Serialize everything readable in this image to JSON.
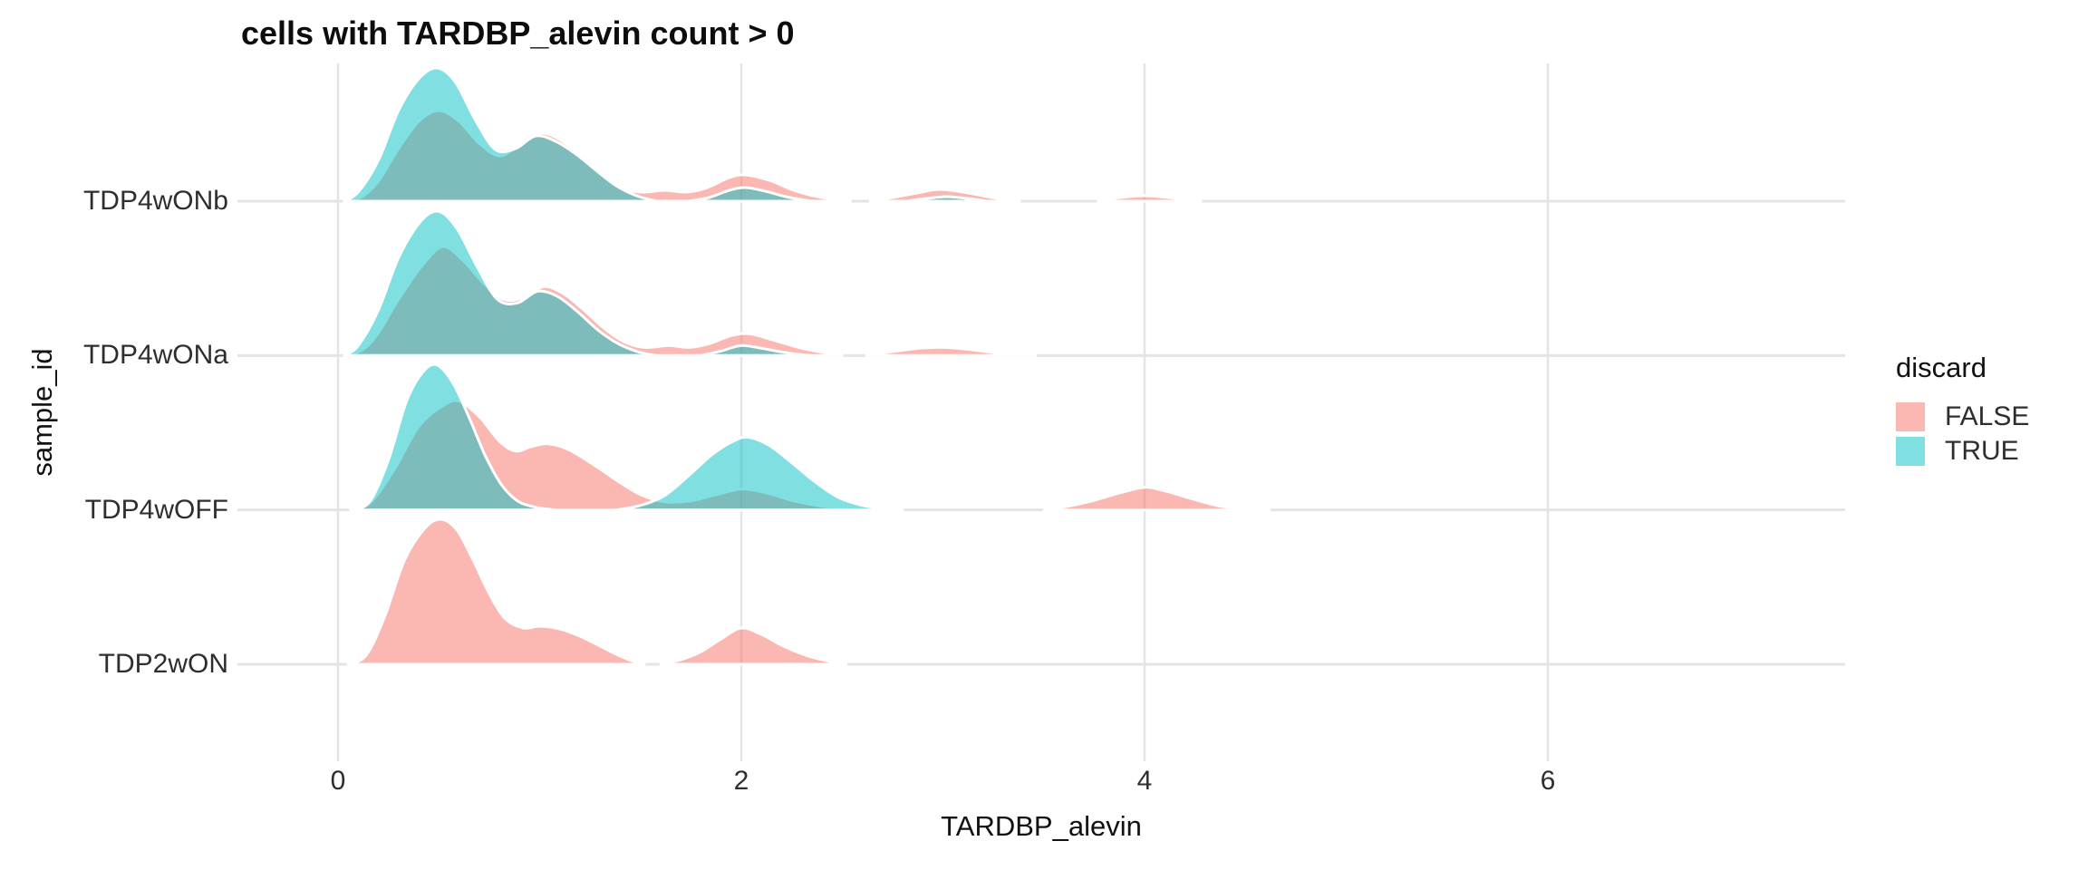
{
  "chart_data": {
    "type": "ridgeline",
    "title": "cells with TARDBP_alevin count > 0",
    "xlabel": "TARDBP_alevin",
    "ylabel": "sample_id",
    "x_ticks": [
      0,
      2,
      4,
      6
    ],
    "x_axis_range": [
      -0.5,
      7.5
    ],
    "grid": "major-only, light gray on white (theme_minimal style)",
    "legend": {
      "title": "discard",
      "position": "right",
      "entries": [
        {
          "label": "FALSE",
          "color": "#F8766D",
          "fill_opacity": 0.52
        },
        {
          "label": "TRUE",
          "color": "#00BFC4",
          "fill_opacity": 0.5
        }
      ]
    },
    "height_unit_note": "segment points are [x_value, density_height_px] where 170px = one full row band",
    "rows": [
      {
        "sample_id": "TDP4wONb",
        "densities": [
          {
            "discard": "FALSE",
            "segments": [
              [
                [
                  0.03,
                  0
                ],
                [
                  0.12,
                  5
                ],
                [
                  0.2,
                  22
                ],
                [
                  0.3,
                  58
                ],
                [
                  0.4,
                  88
                ],
                [
                  0.5,
                  100
                ],
                [
                  0.6,
                  88
                ],
                [
                  0.7,
                  64
                ],
                [
                  0.8,
                  50
                ],
                [
                  0.9,
                  62
                ],
                [
                  1.0,
                  75
                ],
                [
                  1.1,
                  68
                ],
                [
                  1.2,
                  50
                ],
                [
                  1.3,
                  30
                ],
                [
                  1.4,
                  15
                ],
                [
                  1.5,
                  10
                ],
                [
                  1.62,
                  12
                ],
                [
                  1.72,
                  10
                ],
                [
                  1.82,
                  14
                ],
                [
                  1.94,
                  26
                ],
                [
                  2.02,
                  29
                ],
                [
                  2.14,
                  23
                ],
                [
                  2.26,
                  12
                ],
                [
                  2.4,
                  4
                ],
                [
                  2.54,
                  0
                ]
              ],
              [
                [
                  2.64,
                  0
                ],
                [
                  2.75,
                  4
                ],
                [
                  2.87,
                  9
                ],
                [
                  2.98,
                  13
                ],
                [
                  3.1,
                  10
                ],
                [
                  3.22,
                  5
                ],
                [
                  3.32,
                  1
                ],
                [
                  3.38,
                  0
                ]
              ],
              [
                [
                  3.77,
                  0
                ],
                [
                  3.88,
                  4
                ],
                [
                  4.0,
                  6
                ],
                [
                  4.12,
                  4
                ],
                [
                  4.22,
                  1
                ],
                [
                  4.28,
                  0
                ]
              ]
            ]
          },
          {
            "discard": "TRUE",
            "segments": [
              [
                [
                  0.03,
                  0
                ],
                [
                  0.1,
                  10
                ],
                [
                  0.2,
                  45
                ],
                [
                  0.3,
                  100
                ],
                [
                  0.4,
                  135
                ],
                [
                  0.49,
                  147
                ],
                [
                  0.58,
                  132
                ],
                [
                  0.68,
                  90
                ],
                [
                  0.78,
                  57
                ],
                [
                  0.88,
                  58
                ],
                [
                  0.98,
                  72
                ],
                [
                  1.08,
                  66
                ],
                [
                  1.18,
                  52
                ],
                [
                  1.28,
                  34
                ],
                [
                  1.38,
                  17
                ],
                [
                  1.48,
                  6
                ],
                [
                  1.58,
                  0
                ]
              ],
              [
                [
                  1.74,
                  0
                ],
                [
                  1.84,
                  4
                ],
                [
                  1.94,
                  12
                ],
                [
                  2.02,
                  15
                ],
                [
                  2.12,
                  11
                ],
                [
                  2.22,
                  5
                ],
                [
                  2.32,
                  1
                ],
                [
                  2.36,
                  0
                ]
              ],
              [
                [
                  2.82,
                  0
                ],
                [
                  2.92,
                  3
                ],
                [
                  3.02,
                  5
                ],
                [
                  3.12,
                  3
                ],
                [
                  3.22,
                  0
                ]
              ]
            ]
          }
        ]
      },
      {
        "sample_id": "TDP4wONa",
        "densities": [
          {
            "discard": "FALSE",
            "segments": [
              [
                [
                  0.03,
                  0
                ],
                [
                  0.12,
                  6
                ],
                [
                  0.2,
                  25
                ],
                [
                  0.3,
                  62
                ],
                [
                  0.42,
                  100
                ],
                [
                  0.52,
                  120
                ],
                [
                  0.62,
                  105
                ],
                [
                  0.72,
                  80
                ],
                [
                  0.82,
                  62
                ],
                [
                  0.92,
                  64
                ],
                [
                  1.02,
                  76
                ],
                [
                  1.12,
                  68
                ],
                [
                  1.22,
                  50
                ],
                [
                  1.32,
                  30
                ],
                [
                  1.42,
                  15
                ],
                [
                  1.52,
                  9
                ],
                [
                  1.64,
                  11
                ],
                [
                  1.74,
                  9
                ],
                [
                  1.84,
                  13
                ],
                [
                  1.95,
                  22
                ],
                [
                  2.04,
                  24
                ],
                [
                  2.16,
                  17
                ],
                [
                  2.3,
                  8
                ],
                [
                  2.44,
                  2
                ],
                [
                  2.5,
                  0
                ]
              ],
              [
                [
                  2.62,
                  0
                ],
                [
                  2.74,
                  4
                ],
                [
                  2.88,
                  8
                ],
                [
                  3.0,
                  9
                ],
                [
                  3.12,
                  7
                ],
                [
                  3.26,
                  3
                ],
                [
                  3.4,
                  1
                ],
                [
                  3.46,
                  0
                ]
              ]
            ]
          },
          {
            "discard": "TRUE",
            "segments": [
              [
                [
                  0.03,
                  0
                ],
                [
                  0.1,
                  11
                ],
                [
                  0.2,
                  50
                ],
                [
                  0.3,
                  108
                ],
                [
                  0.41,
                  148
                ],
                [
                  0.5,
                  159
                ],
                [
                  0.59,
                  140
                ],
                [
                  0.69,
                  98
                ],
                [
                  0.79,
                  62
                ],
                [
                  0.89,
                  58
                ],
                [
                  0.99,
                  71
                ],
                [
                  1.09,
                  65
                ],
                [
                  1.19,
                  48
                ],
                [
                  1.29,
                  28
                ],
                [
                  1.39,
                  13
                ],
                [
                  1.49,
                  4
                ],
                [
                  1.58,
                  0
                ]
              ],
              [
                [
                  1.8,
                  0
                ],
                [
                  1.9,
                  5
                ],
                [
                  2.0,
                  11
                ],
                [
                  2.1,
                  8
                ],
                [
                  2.2,
                  4
                ],
                [
                  2.3,
                  1
                ],
                [
                  2.34,
                  0
                ]
              ]
            ]
          }
        ]
      },
      {
        "sample_id": "TDP4wOFF",
        "densities": [
          {
            "discard": "FALSE",
            "segments": [
              [
                [
                  0.06,
                  0
                ],
                [
                  0.16,
                  8
                ],
                [
                  0.28,
                  45
                ],
                [
                  0.4,
                  92
                ],
                [
                  0.52,
                  115
                ],
                [
                  0.6,
                  120
                ],
                [
                  0.7,
                  103
                ],
                [
                  0.8,
                  76
                ],
                [
                  0.88,
                  65
                ],
                [
                  0.96,
                  70
                ],
                [
                  1.04,
                  73
                ],
                [
                  1.14,
                  67
                ],
                [
                  1.26,
                  51
                ],
                [
                  1.38,
                  33
                ],
                [
                  1.5,
                  17
                ],
                [
                  1.62,
                  9
                ],
                [
                  1.75,
                  10
                ],
                [
                  1.88,
                  17
                ],
                [
                  2.0,
                  23
                ],
                [
                  2.12,
                  19
                ],
                [
                  2.26,
                  10
                ],
                [
                  2.4,
                  4
                ],
                [
                  2.54,
                  0
                ]
              ],
              [
                [
                  3.5,
                  0
                ],
                [
                  3.62,
                  4
                ],
                [
                  3.74,
                  10
                ],
                [
                  3.88,
                  19
                ],
                [
                  4.0,
                  25
                ],
                [
                  4.1,
                  21
                ],
                [
                  4.24,
                  12
                ],
                [
                  4.38,
                  4
                ],
                [
                  4.52,
                  1
                ],
                [
                  4.62,
                  0
                ]
              ]
            ]
          },
          {
            "discard": "TRUE",
            "segments": [
              [
                [
                  0.08,
                  0
                ],
                [
                  0.16,
                  10
                ],
                [
                  0.25,
                  55
                ],
                [
                  0.34,
                  120
                ],
                [
                  0.42,
                  152
                ],
                [
                  0.49,
                  160
                ],
                [
                  0.57,
                  140
                ],
                [
                  0.65,
                  102
                ],
                [
                  0.73,
                  60
                ],
                [
                  0.81,
                  28
                ],
                [
                  0.89,
                  10
                ],
                [
                  0.98,
                  3
                ],
                [
                  1.08,
                  0
                ]
              ],
              [
                [
                  1.38,
                  0
                ],
                [
                  1.5,
                  5
                ],
                [
                  1.62,
                  16
                ],
                [
                  1.74,
                  38
                ],
                [
                  1.86,
                  62
                ],
                [
                  1.97,
                  77
                ],
                [
                  2.04,
                  80
                ],
                [
                  2.14,
                  71
                ],
                [
                  2.24,
                  54
                ],
                [
                  2.36,
                  32
                ],
                [
                  2.48,
                  14
                ],
                [
                  2.6,
                  5
                ],
                [
                  2.72,
                  1
                ],
                [
                  2.8,
                  0
                ]
              ]
            ]
          }
        ]
      },
      {
        "sample_id": "TDP2wON",
        "densities": [
          {
            "discard": "FALSE",
            "segments": [
              [
                [
                  0.05,
                  0
                ],
                [
                  0.14,
                  10
                ],
                [
                  0.23,
                  52
                ],
                [
                  0.33,
                  115
                ],
                [
                  0.43,
                  150
                ],
                [
                  0.51,
                  160
                ],
                [
                  0.59,
                  148
                ],
                [
                  0.67,
                  115
                ],
                [
                  0.75,
                  78
                ],
                [
                  0.83,
                  50
                ],
                [
                  0.92,
                  40
                ],
                [
                  1.0,
                  42
                ],
                [
                  1.1,
                  39
                ],
                [
                  1.2,
                  31
                ],
                [
                  1.3,
                  20
                ],
                [
                  1.4,
                  9
                ],
                [
                  1.48,
                  2
                ],
                [
                  1.52,
                  0
                ]
              ],
              [
                [
                  1.6,
                  0
                ],
                [
                  1.7,
                  5
                ],
                [
                  1.8,
                  14
                ],
                [
                  1.9,
                  28
                ],
                [
                  2.0,
                  40
                ],
                [
                  2.1,
                  33
                ],
                [
                  2.2,
                  21
                ],
                [
                  2.32,
                  10
                ],
                [
                  2.44,
                  3
                ],
                [
                  2.52,
                  0
                ]
              ]
            ]
          }
        ]
      }
    ]
  }
}
